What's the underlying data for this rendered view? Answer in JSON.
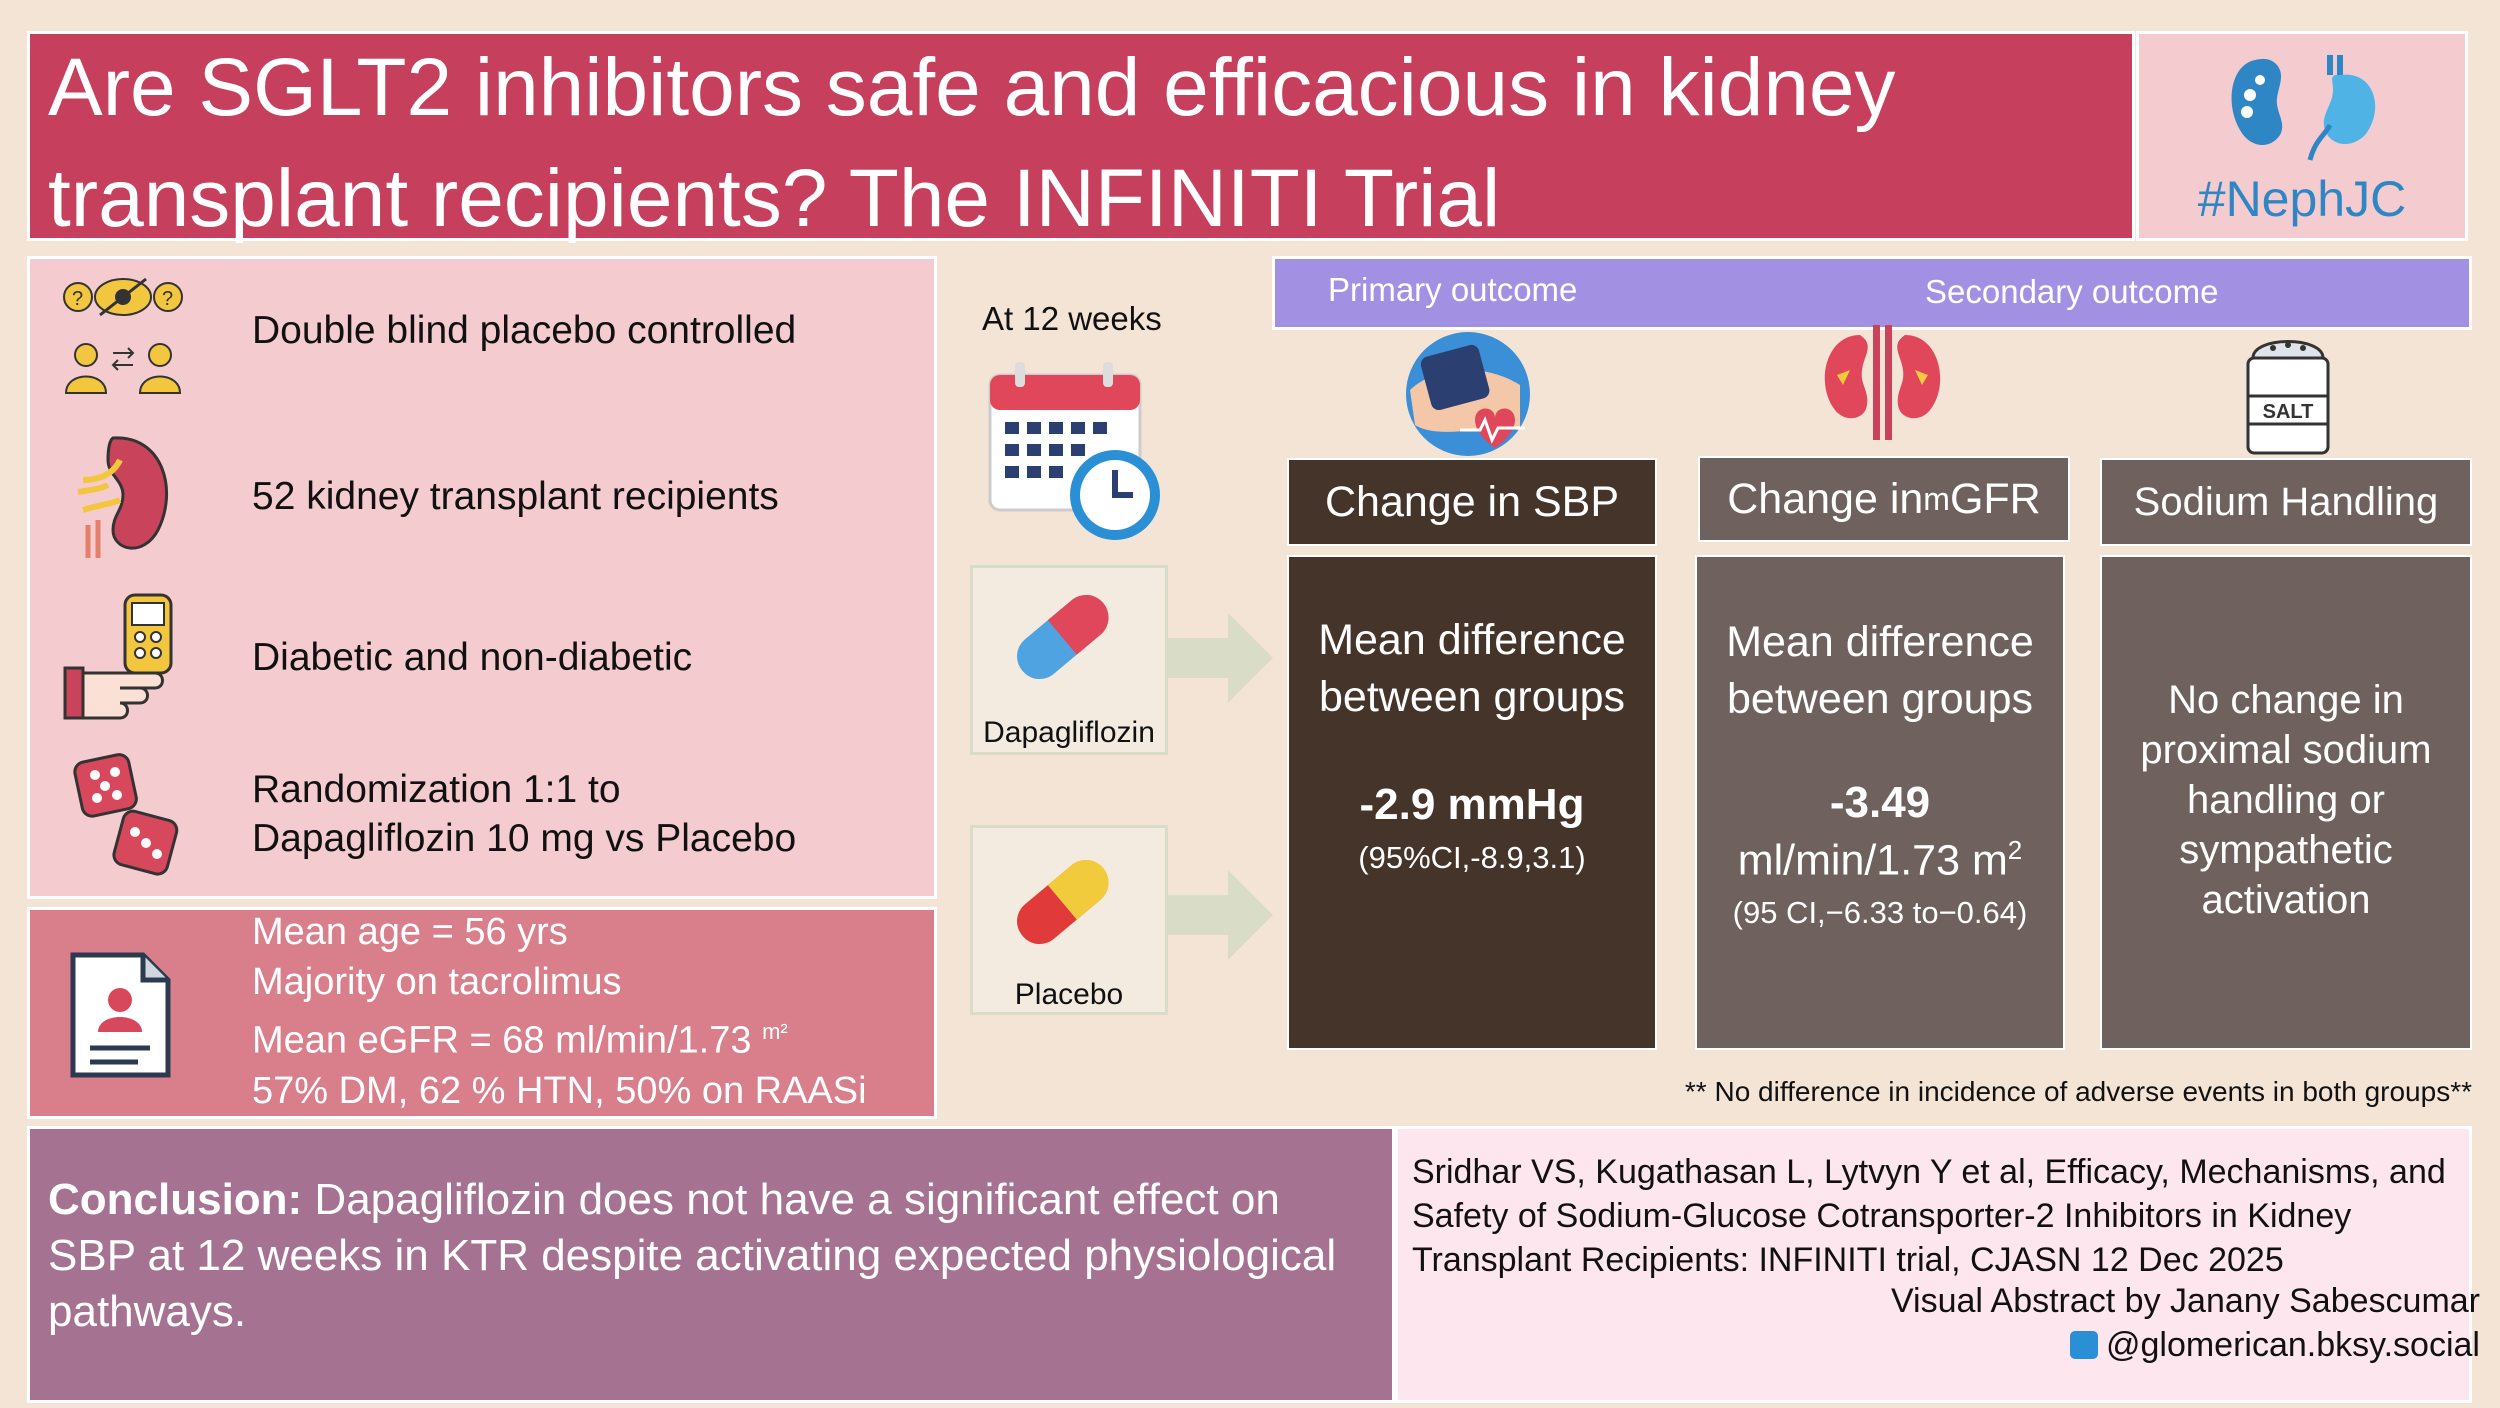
{
  "title": "Are SGLT2 inhibitors safe and efficacious in kidney transplant recipients? The INFINITI Trial",
  "logo": {
    "hashtag": "#NephJC",
    "icon": "kidney-logo-icon"
  },
  "design": [
    {
      "icon": "blinded-people-icon",
      "text": "Double blind placebo controlled"
    },
    {
      "icon": "kidney-icon",
      "text": "52 kidney transplant recipients"
    },
    {
      "icon": "glucometer-icon",
      "text": "Diabetic and non-diabetic"
    },
    {
      "icon": "dice-icon",
      "line1": "Randomization 1:1 to",
      "line2": "Dapagliflozin 10 mg vs Placebo"
    }
  ],
  "baseline": {
    "icon": "patient-record-icon",
    "line1": "Mean age =  56 yrs",
    "line2": "Majority on tacrolimus",
    "line3_main": "Mean eGFR = 68 ml/min/1.73",
    "line3_sup": "m²",
    "line4": "57% DM, 62 % HTN, 50% on RAASi"
  },
  "timepoint": "At 12 weeks",
  "arms": {
    "drug": "Dapagliflozin",
    "placebo": "Placebo"
  },
  "outcomes": {
    "primary_label": "Primary outcome",
    "secondary_label": "Secondary outcome",
    "sbp": {
      "head": "Change in SBP",
      "body1": "Mean difference",
      "body2": "between groups",
      "value": "-2.9 mmHg",
      "ci": "(95%CI,-8.9,3.1)"
    },
    "mgfr": {
      "head_a": "Change in ",
      "head_m": "m",
      "head_b": "GFR",
      "body1": "Mean difference",
      "body2": "between groups",
      "value": "-3.49",
      "unit": "ml/min/1.73 m",
      "unit_sup": "2",
      "ci": "(95 CI,−6.33 to−0.64)"
    },
    "sodium": {
      "head": "Sodium Handling",
      "line1": "No change in",
      "line2": "proximal sodium",
      "line3": "handling or",
      "line4": "sympathetic",
      "line5": "activation"
    }
  },
  "adverse_note": "** No difference in incidence of adverse events in both groups**",
  "conclusion": {
    "label": "Conclusion:",
    "text": " Dapagliflozin does not have a significant effect on SBP at 12 weeks in KTR despite activating expected physiological pathways."
  },
  "citation": {
    "line1": "Sridhar VS, Kugathasan L, Lytvyn Y et al, Efficacy, Mechanisms, and",
    "line2": "Safety of Sodium-Glucose Cotransporter-2 Inhibitors in Kidney",
    "line3": "Transplant Recipients: INFINITI  trial, CJASN 12 Dec 2025",
    "author": "Visual Abstract by Janany Sabescumar",
    "handle": "@glomerican.bksy.social"
  },
  "colors": {
    "title_bg": "#c63f5c",
    "panel_pink": "#f4cccf",
    "baseline_bg": "#d87f8b",
    "outcome_bar": "#a291e3",
    "sbp_dark": "#45342a",
    "gray_col": "#6f625e",
    "conclusion_bg": "#a57391",
    "citation_bg": "#fde6ee",
    "logo_blue": "#2f86c4"
  }
}
